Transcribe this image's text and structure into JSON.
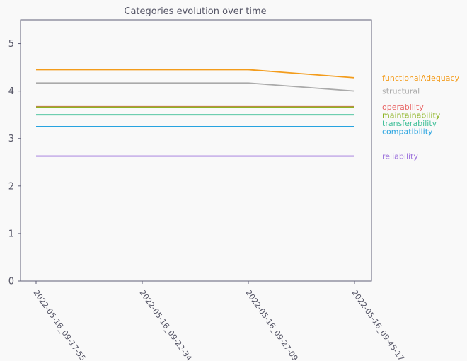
{
  "chart_data": {
    "type": "line",
    "title": "Categories evolution over time",
    "xlabel": "",
    "ylabel": "",
    "x": [
      "2022-05-16_09-17-55",
      "2022-05-16_09-22-34",
      "2022-05-16_09-27-09",
      "2022-05-16_09-45-17"
    ],
    "ylim": [
      0,
      5.5
    ],
    "yticks": [
      0,
      1,
      2,
      3,
      4,
      5
    ],
    "grid": false,
    "legend_placement": "right, labels placed at line ends",
    "series": [
      {
        "name": "functionalAdequacy",
        "color": "#f39c1c",
        "values": [
          4.45,
          4.45,
          4.45,
          4.28
        ]
      },
      {
        "name": "structural",
        "color": "#aaaaaa",
        "values": [
          4.17,
          4.17,
          4.17,
          4.0
        ]
      },
      {
        "name": "operability",
        "color": "#e86363",
        "values": [
          3.67,
          3.67,
          3.67,
          3.67
        ]
      },
      {
        "name": "maintainability",
        "color": "#8db424",
        "values": [
          3.66,
          3.66,
          3.66,
          3.66
        ]
      },
      {
        "name": "transferability",
        "color": "#40bf98",
        "values": [
          3.5,
          3.5,
          3.5,
          3.5
        ]
      },
      {
        "name": "compatibility",
        "color": "#27a3e0",
        "values": [
          3.25,
          3.25,
          3.25,
          3.25
        ]
      },
      {
        "name": "reliability",
        "color": "#a077dd",
        "values": [
          2.63,
          2.63,
          2.63,
          2.63
        ]
      }
    ]
  }
}
